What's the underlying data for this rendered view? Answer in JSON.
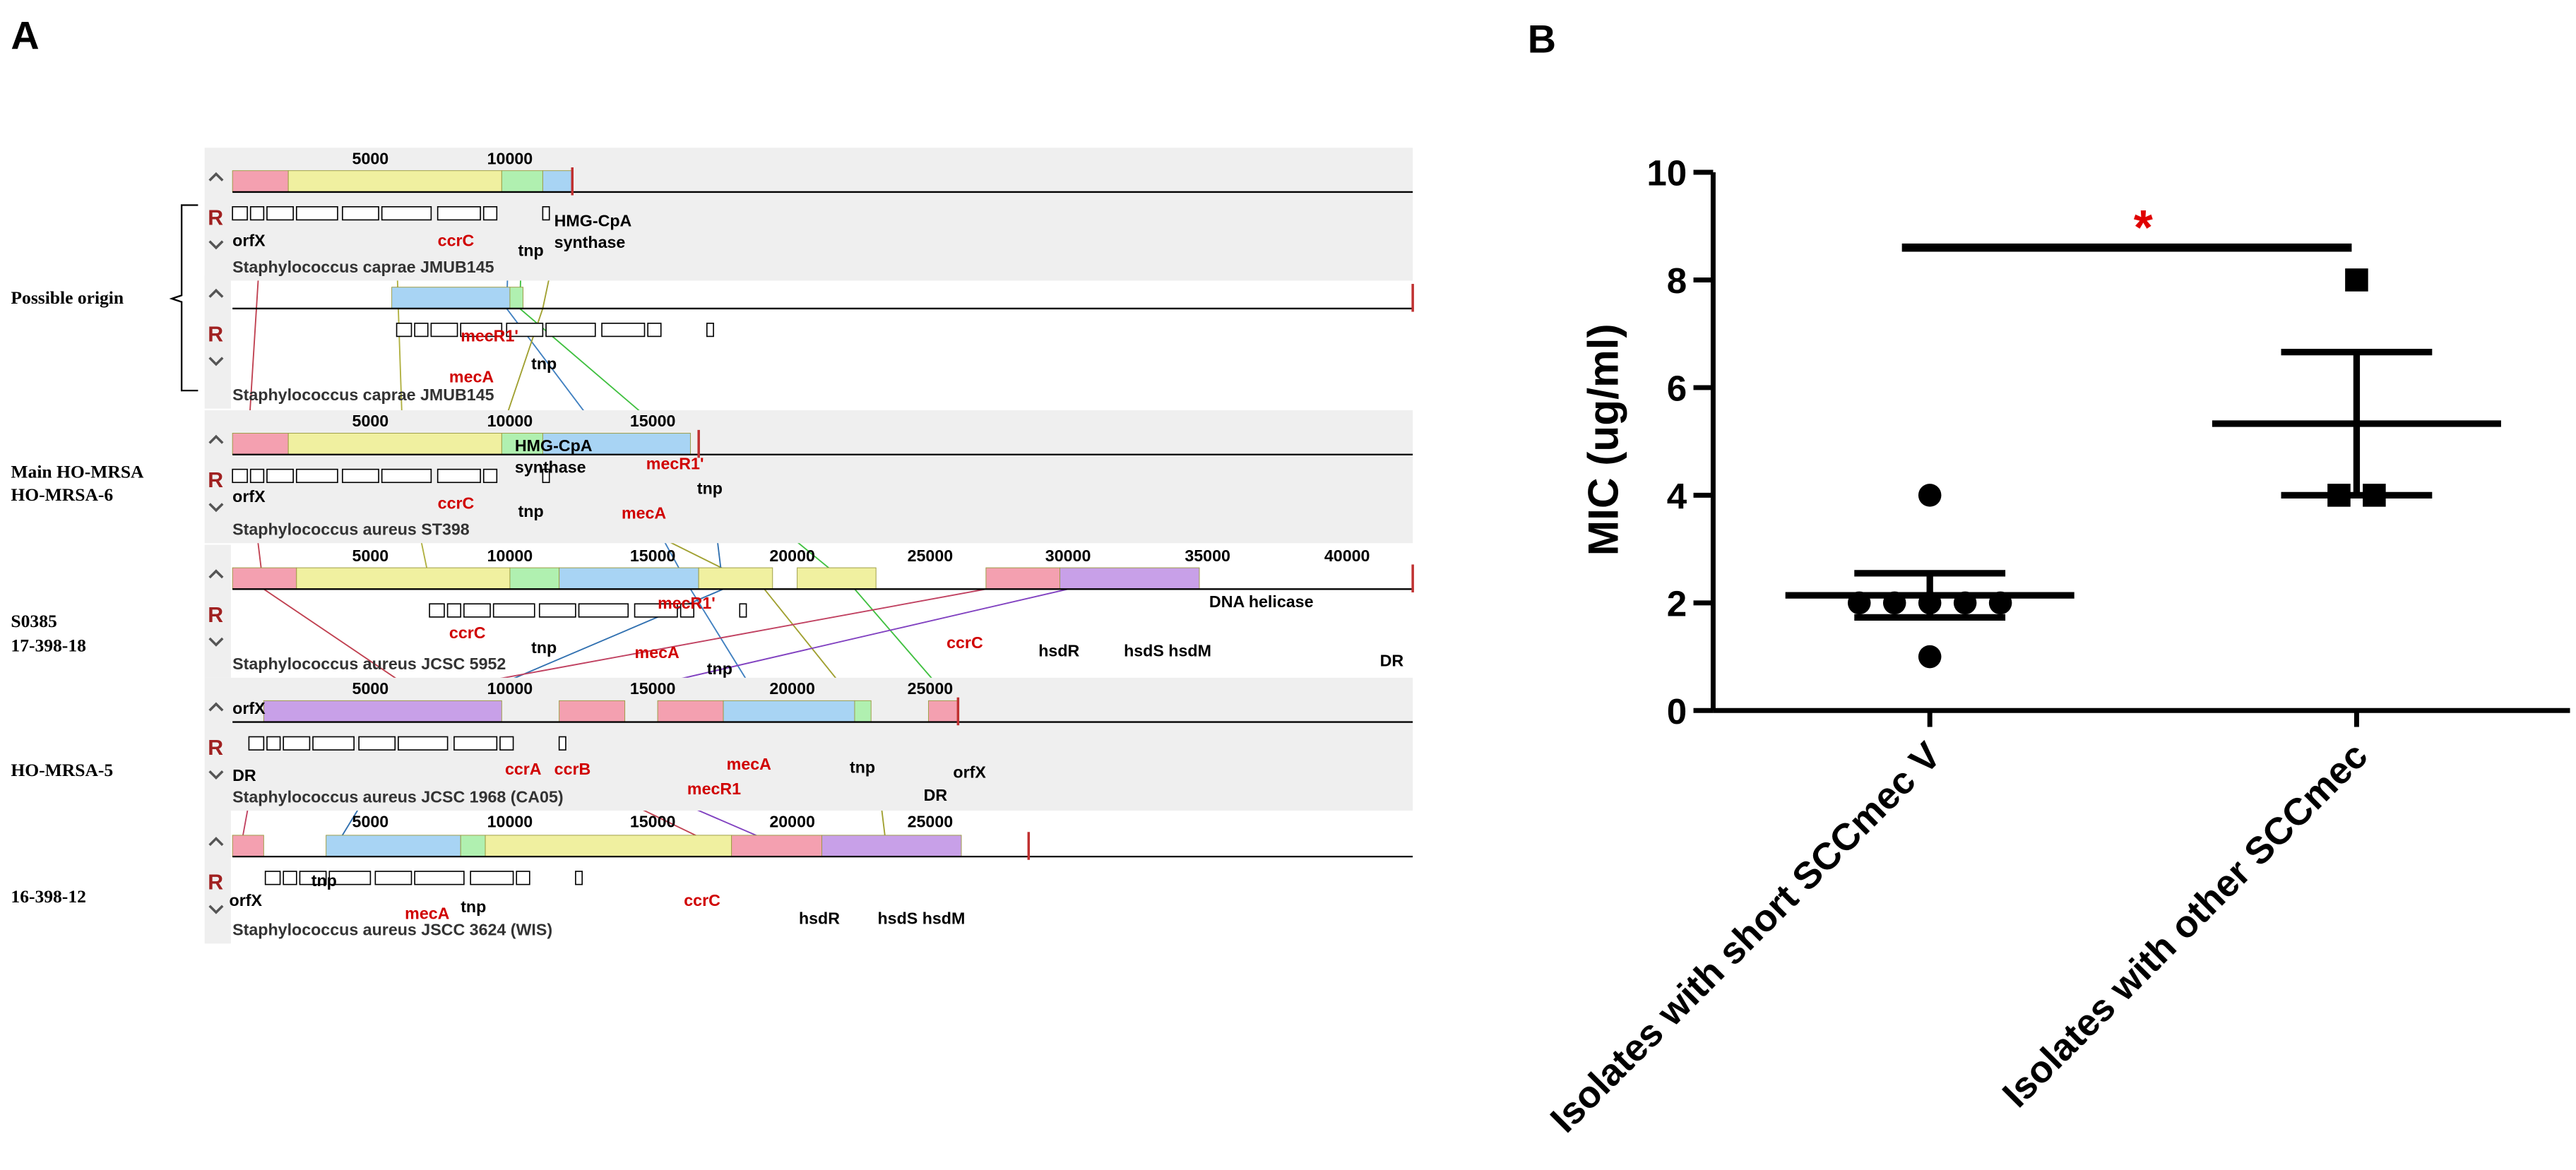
{
  "panel_a": {
    "label": "A",
    "control_label": "R",
    "row_labels": [
      "Possible origin",
      "Main  HO-MRSA",
      "HO-MRSA-6",
      "S0385",
      "17-398-18",
      "HO-MRSA-5",
      "16-398-12"
    ],
    "tracks": [
      {
        "name": "Staphylococcus caprae JMUB145",
        "ruler": [
          "5000",
          "10000"
        ],
        "genes": [
          {
            "label": "orfX",
            "color": "#000000"
          },
          {
            "label": "ccrC",
            "color": "#d00000"
          },
          {
            "label": "tnp",
            "color": "#000000"
          },
          {
            "label": "HMG-CpA",
            "color": "#000000"
          },
          {
            "label": "synthase",
            "color": "#000000"
          }
        ]
      },
      {
        "name": "Staphylococcus caprae JMUB145",
        "ruler": [],
        "genes": [
          {
            "label": "mecR1'",
            "color": "#d00000"
          },
          {
            "label": "mecA",
            "color": "#d00000"
          },
          {
            "label": "tnp",
            "color": "#000000"
          }
        ]
      },
      {
        "name": "Staphylococcus aureus ST398",
        "ruler": [
          "5000",
          "10000",
          "15000"
        ],
        "genes": [
          {
            "label": "HMG-CpA",
            "color": "#000000"
          },
          {
            "label": "synthase",
            "color": "#000000"
          },
          {
            "label": "mecR1'",
            "color": "#d00000"
          },
          {
            "label": "tnp",
            "color": "#000000"
          },
          {
            "label": "orfX",
            "color": "#000000"
          },
          {
            "label": "ccrC",
            "color": "#d00000"
          },
          {
            "label": "tnp",
            "color": "#000000"
          },
          {
            "label": "mecA",
            "color": "#d00000"
          }
        ]
      },
      {
        "name": "Staphylococcus aureus JCSC 5952",
        "ruler": [
          "5000",
          "10000",
          "15000",
          "20000",
          "25000",
          "30000",
          "35000",
          "40000"
        ],
        "genes": [
          {
            "label": "mecR1'",
            "color": "#d00000"
          },
          {
            "label": "DNA helicase",
            "color": "#000000"
          },
          {
            "label": "ccrC",
            "color": "#d00000"
          },
          {
            "label": "ccrC",
            "color": "#d00000"
          },
          {
            "label": "tnp",
            "color": "#000000"
          },
          {
            "label": "mecA",
            "color": "#d00000"
          },
          {
            "label": "tnp",
            "color": "#000000"
          },
          {
            "label": "hsdR",
            "color": "#000000"
          },
          {
            "label": "hsdS hsdM",
            "color": "#000000"
          },
          {
            "label": "DR",
            "color": "#000000"
          }
        ]
      },
      {
        "name": "Staphylococcus aureus JCSC 1968 (CA05)",
        "ruler": [
          "5000",
          "10000",
          "15000",
          "20000",
          "25000"
        ],
        "genes": [
          {
            "label": "orfX",
            "color": "#000000"
          },
          {
            "label": "DR",
            "color": "#000000"
          },
          {
            "label": "ccrA",
            "color": "#d00000"
          },
          {
            "label": "ccrB",
            "color": "#d00000"
          },
          {
            "label": "mecA",
            "color": "#d00000"
          },
          {
            "label": "tnp",
            "color": "#000000"
          },
          {
            "label": "orfX",
            "color": "#000000"
          },
          {
            "label": "mecR1",
            "color": "#d00000"
          },
          {
            "label": "DR",
            "color": "#000000"
          }
        ]
      },
      {
        "name": "Staphylococcus aureus JSCC 3624 (WIS)",
        "ruler": [
          "5000",
          "10000",
          "15000",
          "20000",
          "25000"
        ],
        "genes": [
          {
            "label": "orfX",
            "color": "#000000"
          },
          {
            "label": "tnp",
            "color": "#000000"
          },
          {
            "label": "mecA",
            "color": "#d00000"
          },
          {
            "label": "tnp",
            "color": "#000000"
          },
          {
            "label": "ccrC",
            "color": "#d00000"
          },
          {
            "label": "hsdR",
            "color": "#000000"
          },
          {
            "label": "hsdS hsdM",
            "color": "#000000"
          }
        ]
      }
    ]
  },
  "chart_data": {
    "type": "dotplot",
    "panel_label": "B",
    "ylabel": "MIC (ug/ml)",
    "categories": [
      "Isolates with short SCCmec V",
      "Isolates with other SCCmec"
    ],
    "values": [
      [
        4,
        2,
        2,
        2,
        2,
        2,
        1
      ],
      [
        8,
        4,
        4
      ]
    ],
    "markers": [
      "circle",
      "square"
    ],
    "color": "#000000",
    "means": [
      2.14,
      5.33
    ],
    "errors": [
      0.41,
      1.33
    ],
    "ylim": [
      0,
      10
    ],
    "yticks": [
      0,
      2,
      4,
      6,
      8,
      10
    ],
    "significance": {
      "label": "*",
      "y": 8.6,
      "color": "#e00000"
    }
  }
}
